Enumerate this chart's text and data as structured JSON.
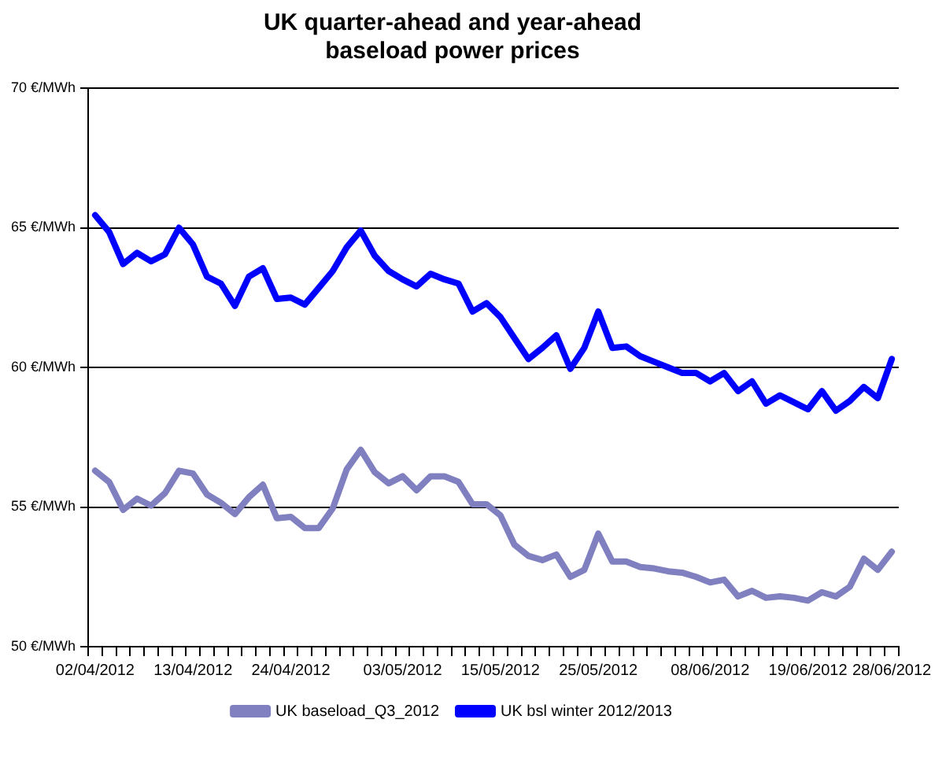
{
  "chart_data": {
    "type": "line",
    "title": "UK quarter-ahead and year-ahead\nbaseload power prices",
    "categories": [
      "02/04/2012",
      null,
      null,
      null,
      null,
      null,
      null,
      "13/04/2012",
      null,
      null,
      null,
      null,
      null,
      null,
      "24/04/2012",
      null,
      null,
      null,
      null,
      null,
      null,
      null,
      "03/05/2012",
      null,
      null,
      null,
      null,
      null,
      null,
      "15/05/2012",
      null,
      null,
      null,
      null,
      null,
      null,
      "25/05/2012",
      null,
      null,
      null,
      null,
      null,
      null,
      null,
      "08/06/2012",
      null,
      null,
      null,
      null,
      null,
      null,
      "19/06/2012",
      null,
      null,
      null,
      null,
      null,
      "28/06/2012"
    ],
    "ylim": [
      50,
      70
    ],
    "yticks": [
      {
        "value": 50,
        "label": "50 €/MWh"
      },
      {
        "value": 55,
        "label": "55 €/MWh"
      },
      {
        "value": 60,
        "label": "60 €/MWh"
      },
      {
        "value": 65,
        "label": "65 €/MWh"
      },
      {
        "value": 70,
        "label": "70 €/MWh"
      }
    ],
    "grid": "y",
    "legend": "bottom",
    "marker": "none",
    "line_style": "solid",
    "series": [
      {
        "name": "UK baseload_Q3_2012",
        "color": "#8080c0",
        "values": [
          56.3,
          55.9,
          54.9,
          55.3,
          55.05,
          55.5,
          56.3,
          56.2,
          55.45,
          55.15,
          54.75,
          55.35,
          55.8,
          54.6,
          54.65,
          54.25,
          54.25,
          54.95,
          56.35,
          57.05,
          56.25,
          55.85,
          56.1,
          55.6,
          56.1,
          56.1,
          55.9,
          55.1,
          55.1,
          54.7,
          53.65,
          53.25,
          53.1,
          53.3,
          52.5,
          52.75,
          54.05,
          53.05,
          53.05,
          52.85,
          52.8,
          52.7,
          52.65,
          52.5,
          52.3,
          52.4,
          51.8,
          52.0,
          51.75,
          51.8,
          51.75,
          51.65,
          51.95,
          51.8,
          52.15,
          53.15,
          52.75,
          53.4
        ]
      },
      {
        "name": "UK bsl winter 2012/2013",
        "color": "#0000ff",
        "values": [
          65.45,
          64.85,
          63.7,
          64.1,
          63.8,
          64.05,
          65.0,
          64.4,
          63.25,
          63.0,
          62.2,
          63.25,
          63.55,
          62.45,
          62.5,
          62.25,
          62.85,
          63.45,
          64.3,
          64.9,
          64.0,
          63.45,
          63.15,
          62.9,
          63.35,
          63.15,
          63.0,
          62.0,
          62.3,
          61.8,
          61.05,
          60.3,
          60.7,
          61.15,
          59.95,
          60.7,
          62.0,
          60.7,
          60.75,
          60.4,
          60.2,
          60.0,
          59.8,
          59.8,
          59.5,
          59.8,
          59.15,
          59.5,
          58.7,
          59.0,
          58.75,
          58.5,
          59.15,
          58.45,
          58.8,
          59.3,
          58.9,
          60.3
        ]
      }
    ]
  }
}
